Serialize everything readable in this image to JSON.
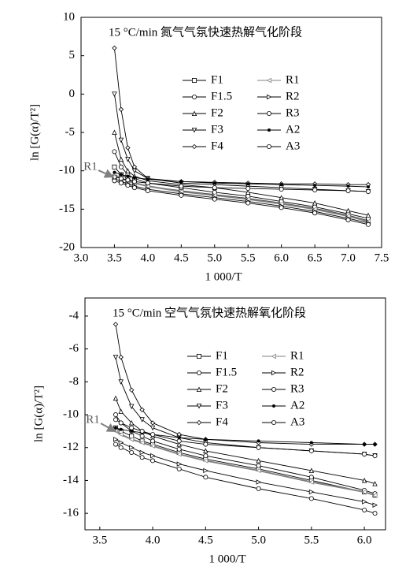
{
  "chart_data": [
    {
      "type": "line",
      "title": "15 °C/min 氮气气氛快速热解气化阶段",
      "x_label": "1 000/T",
      "y_label": "ln [G(α)/T²]",
      "annotation": "R1",
      "x": [
        3.5,
        3.6,
        3.7,
        3.8,
        4.0,
        4.5,
        5.0,
        5.5,
        6.0,
        6.5,
        7.0,
        7.3
      ],
      "xlim": [
        3.0,
        7.5
      ],
      "ylim": [
        -20,
        10
      ],
      "xticks": [
        {
          "value": 3,
          "label": "3.0"
        },
        3.5,
        {
          "value": 4,
          "label": "4.0"
        },
        4.5,
        {
          "value": 5,
          "label": "5.0"
        },
        5.5,
        {
          "value": 6,
          "label": "6.0"
        },
        6.5,
        {
          "value": 7,
          "label": "7.0"
        },
        7.5
      ],
      "yticks": [
        -20,
        -15,
        -10,
        -5,
        0,
        5,
        10
      ],
      "series": [
        {
          "name": "F1",
          "color": "#000000",
          "marker": "square",
          "values": [
            -9.5,
            -10.5,
            -11,
            -11.5,
            -12,
            -12.6,
            -13.1,
            -13.6,
            -14.2,
            -14.9,
            -15.8,
            -16.5
          ]
        },
        {
          "name": "F1.5",
          "color": "#000000",
          "marker": "circle",
          "values": [
            -7.5,
            -9.5,
            -10.5,
            -11,
            -11.6,
            -12.2,
            -12.8,
            -13.3,
            -14,
            -14.7,
            -15.6,
            -16.2
          ]
        },
        {
          "name": "F2",
          "color": "#000000",
          "marker": "triangle",
          "values": [
            -5,
            -8.5,
            -10,
            -10.7,
            -11.3,
            -11.8,
            -12.2,
            -12.8,
            -13.5,
            -14.2,
            -15.2,
            -15.8
          ]
        },
        {
          "name": "F3",
          "color": "#000000",
          "marker": "triangle-down",
          "values": [
            0,
            -6,
            -8.5,
            -10,
            -11,
            -11.6,
            -11.8,
            -12,
            -12.2,
            -12.4,
            -12.6,
            -12.7
          ]
        },
        {
          "name": "F4",
          "color": "#000000",
          "marker": "diamond",
          "values": [
            6,
            -2,
            -7,
            -9.5,
            -11,
            -11.4,
            -11.5,
            -11.6,
            -11.7,
            -11.7,
            -11.8,
            -11.8
          ]
        },
        {
          "name": "R1",
          "color": "#808080",
          "marker": "triangle-left",
          "values": [
            -10.5,
            -11,
            -11.3,
            -11.6,
            -12,
            -12.7,
            -13.2,
            -13.7,
            -14.3,
            -15,
            -15.9,
            -16.6
          ]
        },
        {
          "name": "R2",
          "color": "#000000",
          "marker": "triangle-right",
          "values": [
            -11,
            -11.4,
            -11.7,
            -12,
            -12.4,
            -13,
            -13.5,
            -14,
            -14.6,
            -15.3,
            -16.2,
            -16.8
          ]
        },
        {
          "name": "R3",
          "color": "#000000",
          "marker": "circle",
          "values": [
            -11.3,
            -11.6,
            -11.9,
            -12.2,
            -12.6,
            -13.2,
            -13.7,
            -14.2,
            -14.8,
            -15.5,
            -16.4,
            -17
          ]
        },
        {
          "name": "A2",
          "color": "#000000",
          "marker": "dot",
          "values": [
            -10.2,
            -10.5,
            -10.7,
            -10.9,
            -11.1,
            -11.4,
            -11.6,
            -11.7,
            -11.8,
            -11.9,
            -12,
            -12.1
          ]
        },
        {
          "name": "A3",
          "color": "#000000",
          "marker": "circle",
          "values": [
            -10.8,
            -11,
            -11.2,
            -11.4,
            -11.6,
            -12,
            -12.2,
            -12.3,
            -12.4,
            -12.5,
            -12.6,
            -12.7
          ]
        }
      ]
    },
    {
      "type": "line",
      "title": "15 °C/min 空气气氛快速热解氧化阶段",
      "x_label": "1 000/T",
      "y_label": "ln [G(α)/T²]",
      "annotation": "R1",
      "x": [
        3.65,
        3.7,
        3.8,
        3.9,
        4.0,
        4.25,
        4.5,
        5.0,
        5.5,
        6.0,
        6.1
      ],
      "xlim": [
        3.36,
        6.2
      ],
      "ylim": [
        -17,
        -2.9
      ],
      "xticks": [
        3.5,
        {
          "value": 4,
          "label": "4.0"
        },
        4.5,
        {
          "value": 5,
          "label": "5.0"
        },
        5.5,
        {
          "value": 6,
          "label": "6.0"
        }
      ],
      "yticks": [
        -16,
        -14,
        -12,
        -10,
        -8,
        -6,
        -4
      ],
      "series": [
        {
          "name": "F1",
          "color": "#000000",
          "marker": "square",
          "values": [
            -10.8,
            -11,
            -11.3,
            -11.6,
            -11.8,
            -12.3,
            -12.7,
            -13.3,
            -14,
            -14.7,
            -14.9
          ]
        },
        {
          "name": "F1.5",
          "color": "#000000",
          "marker": "circle",
          "values": [
            -10,
            -10.5,
            -11,
            -11.3,
            -11.6,
            -12.1,
            -12.5,
            -13.1,
            -13.8,
            -14.6,
            -14.8
          ]
        },
        {
          "name": "F2",
          "color": "#000000",
          "marker": "triangle",
          "values": [
            -9,
            -9.8,
            -10.5,
            -11,
            -11.3,
            -11.8,
            -12.2,
            -12.8,
            -13.4,
            -14,
            -14.2
          ]
        },
        {
          "name": "F3",
          "color": "#000000",
          "marker": "triangle-down",
          "values": [
            -6.5,
            -8,
            -9.5,
            -10.3,
            -10.8,
            -11.4,
            -11.7,
            -12,
            -12.2,
            -12.4,
            -12.5
          ]
        },
        {
          "name": "F4",
          "color": "#000000",
          "marker": "diamond",
          "values": [
            -4.5,
            -6.5,
            -8.5,
            -9.7,
            -10.5,
            -11.2,
            -11.5,
            -11.7,
            -11.8,
            -11.8,
            -11.8
          ]
        },
        {
          "name": "R1",
          "color": "#808080",
          "marker": "triangle-left",
          "values": [
            -11,
            -11.2,
            -11.5,
            -11.7,
            -11.9,
            -12.4,
            -12.8,
            -13.4,
            -14.1,
            -14.7,
            -14.9
          ]
        },
        {
          "name": "R2",
          "color": "#000000",
          "marker": "triangle-right",
          "values": [
            -11.5,
            -11.7,
            -12,
            -12.3,
            -12.5,
            -13,
            -13.4,
            -14.1,
            -14.7,
            -15.3,
            -15.5
          ]
        },
        {
          "name": "R3",
          "color": "#000000",
          "marker": "circle",
          "values": [
            -11.8,
            -12,
            -12.3,
            -12.6,
            -12.8,
            -13.3,
            -13.8,
            -14.5,
            -15.1,
            -15.8,
            -16
          ]
        },
        {
          "name": "A2",
          "color": "#000000",
          "marker": "dot",
          "values": [
            -10.8,
            -10.9,
            -11,
            -11.1,
            -11.2,
            -11.4,
            -11.5,
            -11.6,
            -11.7,
            -11.8,
            -11.8
          ]
        },
        {
          "name": "A3",
          "color": "#000000",
          "marker": "circle",
          "values": [
            -10.3,
            -10.5,
            -10.8,
            -11,
            -11.2,
            -11.6,
            -11.8,
            -12,
            -12.2,
            -12.4,
            -12.5
          ]
        }
      ]
    }
  ]
}
